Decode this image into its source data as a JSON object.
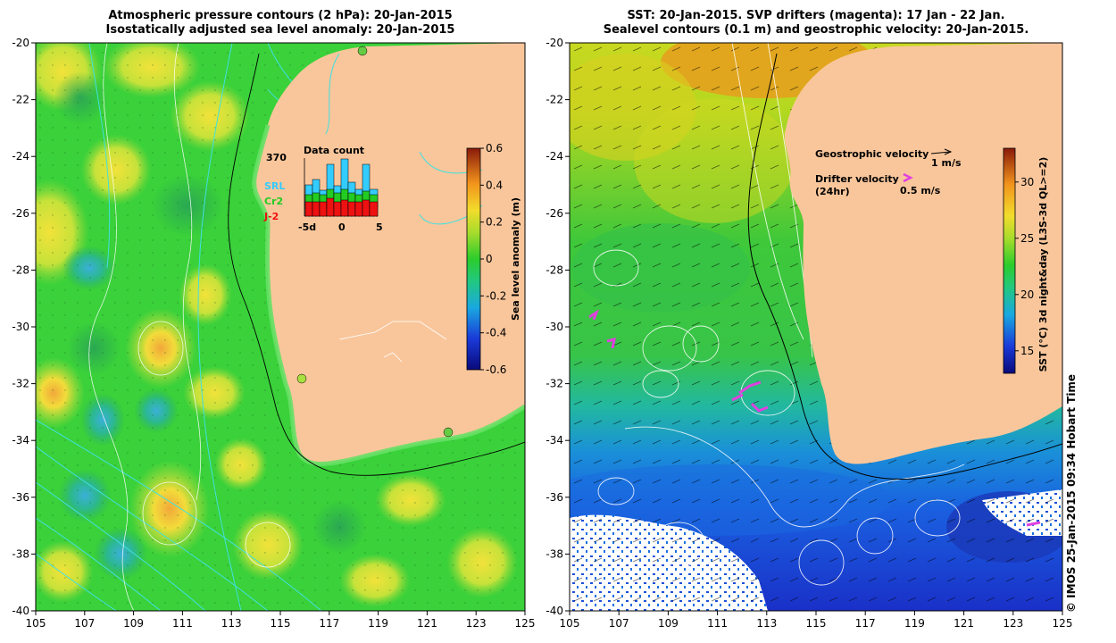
{
  "left_panel": {
    "title_line1": "Atmospheric pressure contours (2 hPa): 20-Jan-2015",
    "title_line2": "Isostatically adjusted sea level anomaly: 20-Jan-2015",
    "lat_ticks": [
      "-20",
      "-22",
      "-24",
      "-26",
      "-28",
      "-30",
      "-32",
      "-34",
      "-36",
      "-38",
      "-40"
    ],
    "lon_ticks": [
      "105",
      "107",
      "109",
      "111",
      "113",
      "115",
      "117",
      "119",
      "121",
      "123",
      "125"
    ],
    "colorbar": {
      "label": "Sea level anomaly (m)",
      "ticks": [
        "0.6",
        "0.4",
        "0.2",
        "0",
        "-0.2",
        "-0.4",
        "-0.6"
      ],
      "range": [
        -0.6,
        0.6
      ]
    },
    "data_count": {
      "title": "Data count",
      "max_label": "370",
      "x_ticks": [
        "-5d",
        "0",
        "5"
      ],
      "legend": [
        {
          "name": "SRL",
          "color": "#33ccff"
        },
        {
          "name": "Cr2",
          "color": "#22cc22"
        },
        {
          "name": "J-2",
          "color": "#ee1111"
        }
      ]
    }
  },
  "right_panel": {
    "title_line1": "SST: 20-Jan-2015. SVP drifters (magenta): 17 Jan - 22 Jan.",
    "title_line2": "Sealevel contours (0.1 m) and geostrophic velocity: 20-Jan-2015.",
    "lat_ticks": [
      "-20",
      "-22",
      "-24",
      "-26",
      "-28",
      "-30",
      "-32",
      "-34",
      "-36",
      "-38",
      "-40"
    ],
    "lon_ticks": [
      "105",
      "107",
      "109",
      "111",
      "113",
      "115",
      "117",
      "119",
      "121",
      "123",
      "125"
    ],
    "colorbar": {
      "label": "SST (°C) 3d night&day (L3S-3d QL>=2)",
      "ticks": [
        "30",
        "25",
        "20",
        "15"
      ],
      "range": [
        13,
        33
      ]
    },
    "legend": {
      "geo_label": "Geostrophic velocity",
      "geo_value": "1 m/s",
      "drifter_label_1": "Drifter velocity",
      "drifter_label_2": "(24hr)",
      "drifter_value": "0.5 m/s"
    }
  },
  "credit": "© IMOS 25-Jan-2015 09:34 Hobart Time",
  "colors": {
    "land": "#f9c69b",
    "ocean_green": "#3ad13a",
    "drifter": "#e040e0",
    "pressure": "#40e0e0"
  }
}
